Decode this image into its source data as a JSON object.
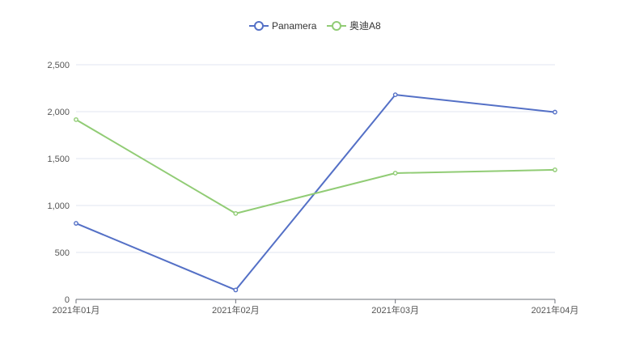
{
  "chart_data": {
    "type": "line",
    "title": "",
    "xlabel": "",
    "ylabel": "",
    "categories": [
      "2021年01月",
      "2021年02月",
      "2021年03月",
      "2021年04月"
    ],
    "series": [
      {
        "name": "Panamera",
        "values": [
          810,
          100,
          2180,
          1995
        ],
        "color": "#5470c6"
      },
      {
        "name": "奥迪A8",
        "values": [
          1915,
          915,
          1345,
          1380
        ],
        "color": "#91cc75"
      }
    ],
    "ylim": [
      0,
      2500
    ],
    "yticks": [
      0,
      500,
      1000,
      1500,
      2000,
      2500
    ],
    "ytick_labels": [
      "0",
      "500",
      "1,000",
      "1,500",
      "2,000",
      "2,500"
    ],
    "grid": true,
    "legend_position": "top-center"
  }
}
